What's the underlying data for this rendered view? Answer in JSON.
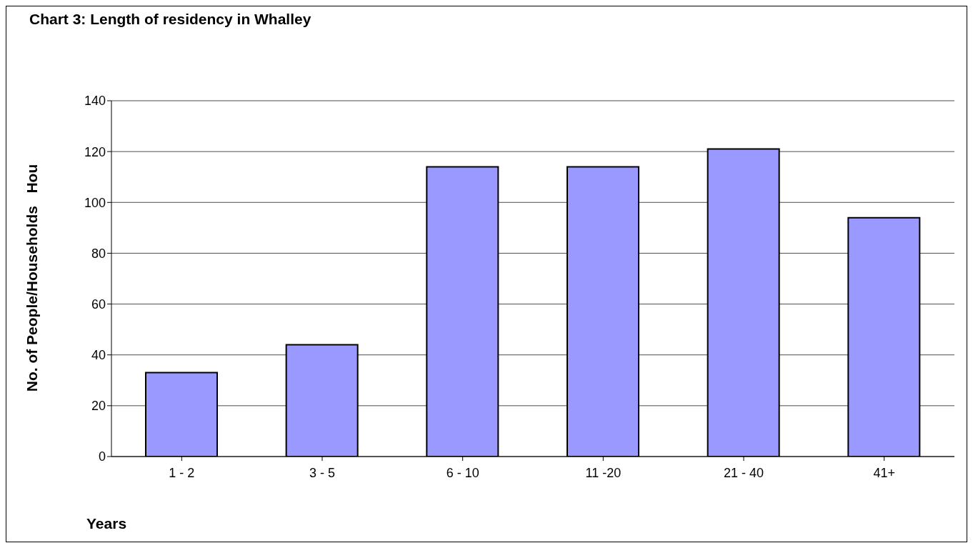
{
  "chart_data": {
    "type": "bar",
    "title": "Chart 3: Length of residency in Whalley",
    "xlabel": "Years",
    "ylabel": "No. of People/Households   Hou",
    "categories": [
      "1 - 2",
      "3 - 5",
      "6 - 10",
      "11 -20",
      "21 - 40",
      "41+"
    ],
    "values": [
      33,
      44,
      114,
      114,
      121,
      94
    ],
    "color": "#9999ff",
    "ylim": [
      0,
      140
    ],
    "yticks": [
      0,
      20,
      40,
      60,
      80,
      100,
      120,
      140
    ],
    "grid": "y"
  }
}
